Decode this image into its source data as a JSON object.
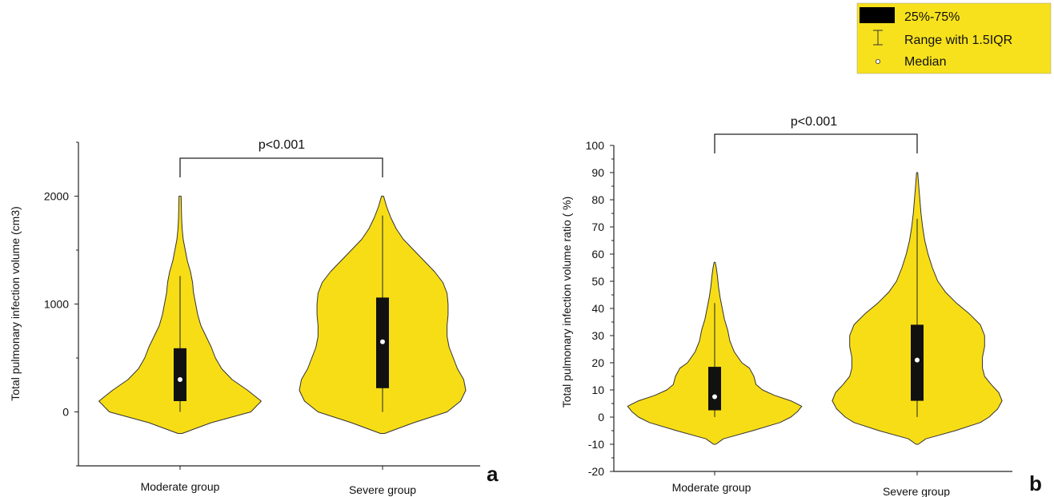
{
  "legend": {
    "items": [
      {
        "label": "25%-75%",
        "symbol": "box"
      },
      {
        "label": "Range with 1.5IQR",
        "symbol": "whisker"
      },
      {
        "label": "Median",
        "symbol": "dot"
      }
    ],
    "background": "#f7e11c"
  },
  "colors": {
    "violin_fill": "#f7dd16",
    "violin_stroke": "#333333",
    "box": "#111111",
    "median": "#ffffff"
  },
  "chart_data": [
    {
      "type": "violin",
      "panel_letter": "a",
      "ylabel": "Total pulmonary infection volume (cm3)",
      "xlabel": "",
      "categories": [
        "Moderate group",
        "Severe group"
      ],
      "ylim": [
        -500,
        2500
      ],
      "yticks": [
        0,
        1000,
        2000
      ],
      "significance": "p<0.001",
      "series": [
        {
          "q1": 100,
          "median": 300,
          "q3": 590,
          "whisker_low": 0,
          "whisker_high": 1260,
          "density": [
            [
              -200,
              0.02
            ],
            [
              -100,
              0.3
            ],
            [
              0,
              0.68
            ],
            [
              100,
              0.78
            ],
            [
              200,
              0.65
            ],
            [
              300,
              0.5
            ],
            [
              400,
              0.4
            ],
            [
              500,
              0.34
            ],
            [
              600,
              0.3
            ],
            [
              700,
              0.25
            ],
            [
              800,
              0.2
            ],
            [
              900,
              0.17
            ],
            [
              1000,
              0.15
            ],
            [
              1100,
              0.13
            ],
            [
              1200,
              0.12
            ],
            [
              1300,
              0.1
            ],
            [
              1400,
              0.07
            ],
            [
              1500,
              0.05
            ],
            [
              1600,
              0.03
            ],
            [
              1700,
              0.02
            ],
            [
              1800,
              0.015
            ],
            [
              1900,
              0.012
            ],
            [
              2000,
              0.01
            ]
          ]
        },
        {
          "q1": 220,
          "median": 650,
          "q3": 1060,
          "whisker_low": 0,
          "whisker_high": 1820,
          "density": [
            [
              -200,
              0.02
            ],
            [
              -100,
              0.3
            ],
            [
              0,
              0.62
            ],
            [
              100,
              0.75
            ],
            [
              200,
              0.8
            ],
            [
              300,
              0.78
            ],
            [
              400,
              0.72
            ],
            [
              500,
              0.68
            ],
            [
              600,
              0.64
            ],
            [
              700,
              0.62
            ],
            [
              800,
              0.62
            ],
            [
              900,
              0.63
            ],
            [
              1000,
              0.63
            ],
            [
              1100,
              0.62
            ],
            [
              1200,
              0.58
            ],
            [
              1300,
              0.5
            ],
            [
              1400,
              0.4
            ],
            [
              1500,
              0.3
            ],
            [
              1600,
              0.2
            ],
            [
              1700,
              0.13
            ],
            [
              1800,
              0.08
            ],
            [
              1900,
              0.04
            ],
            [
              2000,
              0.01
            ]
          ]
        }
      ]
    },
    {
      "type": "violin",
      "panel_letter": "b",
      "ylabel": "Total pulmonary infection volume ratio ( %)",
      "xlabel": "",
      "categories": [
        "Moderate group",
        "Severe group"
      ],
      "ylim": [
        -20,
        100
      ],
      "yticks": [
        -20,
        -10,
        0,
        10,
        20,
        30,
        40,
        50,
        60,
        70,
        80,
        90,
        100
      ],
      "significance": "p<0.001",
      "series": [
        {
          "q1": 2.5,
          "median": 7.5,
          "q3": 18.5,
          "whisker_low": 0,
          "whisker_high": 42,
          "density": [
            [
              -10,
              0.01
            ],
            [
              -8,
              0.08
            ],
            [
              -5,
              0.35
            ],
            [
              -2,
              0.6
            ],
            [
              0,
              0.7
            ],
            [
              2,
              0.76
            ],
            [
              4,
              0.8
            ],
            [
              6,
              0.7
            ],
            [
              8,
              0.55
            ],
            [
              10,
              0.44
            ],
            [
              12,
              0.38
            ],
            [
              15,
              0.36
            ],
            [
              18,
              0.32
            ],
            [
              20,
              0.25
            ],
            [
              24,
              0.18
            ],
            [
              28,
              0.14
            ],
            [
              32,
              0.12
            ],
            [
              36,
              0.09
            ],
            [
              40,
              0.07
            ],
            [
              44,
              0.05
            ],
            [
              48,
              0.035
            ],
            [
              52,
              0.025
            ],
            [
              55,
              0.015
            ],
            [
              57,
              0.005
            ]
          ]
        },
        {
          "q1": 6,
          "median": 21,
          "q3": 34,
          "whisker_low": 0,
          "whisker_high": 73,
          "density": [
            [
              -10,
              0.01
            ],
            [
              -8,
              0.08
            ],
            [
              -5,
              0.35
            ],
            [
              -2,
              0.58
            ],
            [
              0,
              0.66
            ],
            [
              3,
              0.74
            ],
            [
              6,
              0.78
            ],
            [
              9,
              0.75
            ],
            [
              12,
              0.68
            ],
            [
              15,
              0.62
            ],
            [
              18,
              0.6
            ],
            [
              22,
              0.6
            ],
            [
              26,
              0.62
            ],
            [
              30,
              0.62
            ],
            [
              34,
              0.58
            ],
            [
              38,
              0.48
            ],
            [
              42,
              0.36
            ],
            [
              46,
              0.26
            ],
            [
              50,
              0.19
            ],
            [
              55,
              0.14
            ],
            [
              60,
              0.1
            ],
            [
              65,
              0.07
            ],
            [
              70,
              0.05
            ],
            [
              75,
              0.035
            ],
            [
              80,
              0.025
            ],
            [
              85,
              0.015
            ],
            [
              90,
              0.005
            ]
          ]
        }
      ]
    }
  ]
}
